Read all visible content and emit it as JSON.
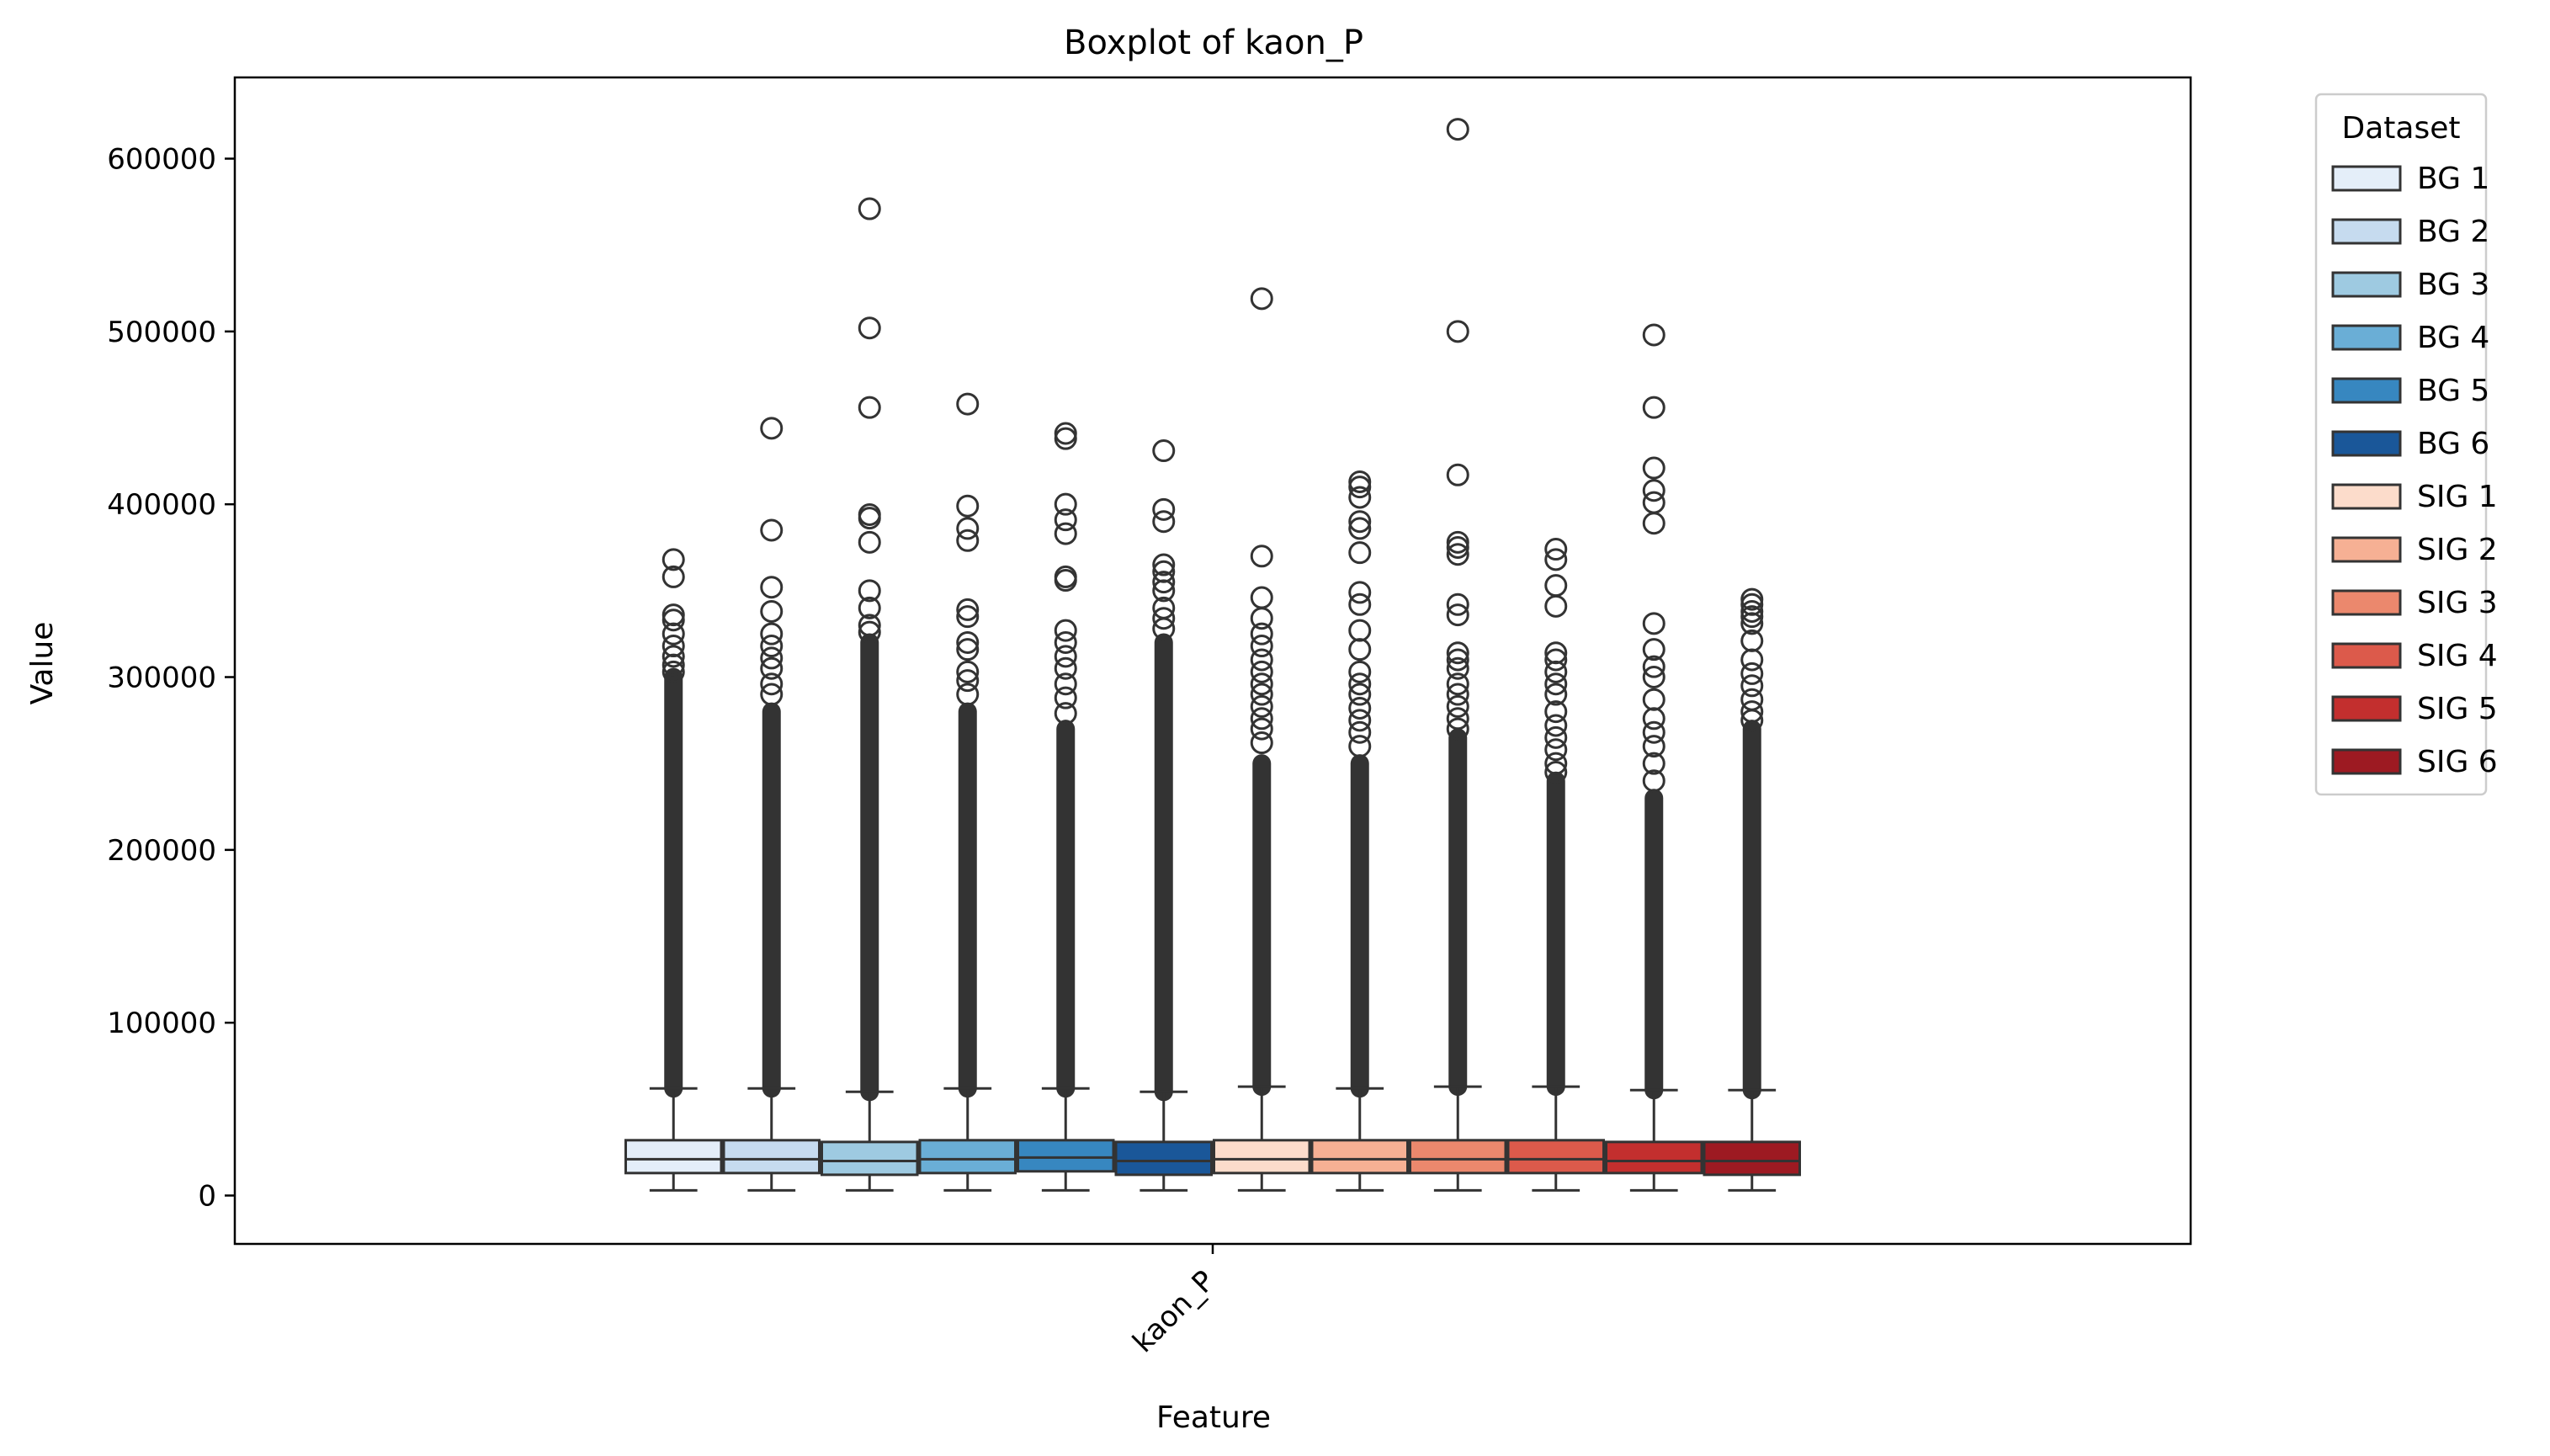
{
  "chart_data": {
    "type": "boxplot",
    "title": "Boxplot of kaon_P",
    "xlabel": "Feature",
    "ylabel": "Value",
    "categories": [
      "kaon_P"
    ],
    "ylim": [
      -28000,
      647000
    ],
    "yticks": [
      0,
      100000,
      200000,
      300000,
      400000,
      500000,
      600000
    ],
    "ytick_labels": [
      "0",
      "100000",
      "200000",
      "300000",
      "400000",
      "500000",
      "600000"
    ],
    "legend": {
      "title": "Dataset",
      "placement": "outside-right"
    },
    "series": [
      {
        "name": "BG 1",
        "color": "#e4eef9",
        "whisker_low": 3000,
        "q1": 13000,
        "median": 21000,
        "q3": 32000,
        "whisker_high": 62000,
        "outlier_dense_max": 300000,
        "outliers": [
          368000,
          358000,
          336000,
          333000,
          325000,
          318000,
          312000,
          307000,
          303000
        ]
      },
      {
        "name": "BG 2",
        "color": "#c6dbef",
        "whisker_low": 3000,
        "q1": 13000,
        "median": 21000,
        "q3": 32000,
        "whisker_high": 62000,
        "outlier_dense_max": 280000,
        "outliers": [
          444000,
          385000,
          352000,
          338000,
          325000,
          318000,
          311000,
          305000,
          296000,
          290000
        ]
      },
      {
        "name": "BG 3",
        "color": "#9ecae1",
        "whisker_low": 3000,
        "q1": 12000,
        "median": 20000,
        "q3": 31000,
        "whisker_high": 60000,
        "outlier_dense_max": 320000,
        "outliers": [
          571000,
          502000,
          456000,
          394000,
          392000,
          378000,
          350000,
          340000,
          330000,
          326000
        ]
      },
      {
        "name": "BG 4",
        "color": "#6aaed6",
        "whisker_low": 3000,
        "q1": 13000,
        "median": 21000,
        "q3": 32000,
        "whisker_high": 62000,
        "outlier_dense_max": 280000,
        "outliers": [
          458000,
          399000,
          386000,
          379000,
          339000,
          335000,
          320000,
          316000,
          303000,
          298000,
          290000
        ]
      },
      {
        "name": "BG 5",
        "color": "#3787c0",
        "whisker_low": 3000,
        "q1": 14000,
        "median": 22000,
        "q3": 32000,
        "whisker_high": 62000,
        "outlier_dense_max": 270000,
        "outliers": [
          441000,
          438000,
          400000,
          391000,
          383000,
          358000,
          356000,
          327000,
          320000,
          312000,
          305000,
          296000,
          288000,
          279000
        ]
      },
      {
        "name": "BG 6",
        "color": "#1a5799",
        "whisker_low": 3000,
        "q1": 12000,
        "median": 20000,
        "q3": 31000,
        "whisker_high": 60000,
        "outlier_dense_max": 320000,
        "outliers": [
          431000,
          397000,
          390000,
          365000,
          361000,
          355000,
          350000,
          340000,
          334000,
          328000
        ]
      },
      {
        "name": "SIG 1",
        "color": "#fcdccb",
        "whisker_low": 3000,
        "q1": 13000,
        "median": 21000,
        "q3": 32000,
        "whisker_high": 63000,
        "outlier_dense_max": 250000,
        "outliers": [
          519000,
          370000,
          346000,
          334000,
          325000,
          318000,
          310000,
          303000,
          296000,
          290000,
          283000,
          276000,
          270000,
          262000
        ]
      },
      {
        "name": "SIG 2",
        "color": "#f6b094",
        "whisker_low": 3000,
        "q1": 13000,
        "median": 21000,
        "q3": 32000,
        "whisker_high": 62000,
        "outlier_dense_max": 250000,
        "outliers": [
          413000,
          410000,
          404000,
          390000,
          386000,
          372000,
          349000,
          342000,
          327000,
          316000,
          303000,
          296000,
          290000,
          282000,
          275000,
          268000,
          260000
        ]
      },
      {
        "name": "SIG 3",
        "color": "#eb886d",
        "whisker_low": 3000,
        "q1": 13000,
        "median": 21000,
        "q3": 32000,
        "whisker_high": 63000,
        "outlier_dense_max": 265000,
        "outliers": [
          617000,
          500000,
          417000,
          378000,
          375000,
          371000,
          342000,
          336000,
          314000,
          310000,
          305000,
          296000,
          290000,
          283000,
          276000,
          270000
        ]
      },
      {
        "name": "SIG 4",
        "color": "#dc5a4b",
        "whisker_low": 3000,
        "q1": 13000,
        "median": 21000,
        "q3": 32000,
        "whisker_high": 63000,
        "outlier_dense_max": 240000,
        "outliers": [
          374000,
          368000,
          353000,
          341000,
          314000,
          310000,
          303000,
          296000,
          290000,
          280000,
          272000,
          265000,
          258000,
          250000,
          245000
        ]
      },
      {
        "name": "SIG 5",
        "color": "#c32f2e",
        "whisker_low": 3000,
        "q1": 13000,
        "median": 20000,
        "q3": 31000,
        "whisker_high": 61000,
        "outlier_dense_max": 230000,
        "outliers": [
          498000,
          456000,
          421000,
          408000,
          401000,
          389000,
          331000,
          316000,
          306000,
          300000,
          287000,
          276000,
          268000,
          260000,
          250000,
          240000
        ]
      },
      {
        "name": "SIG 6",
        "color": "#9d1a22",
        "whisker_low": 3000,
        "q1": 12000,
        "median": 20000,
        "q3": 31000,
        "whisker_high": 61000,
        "outlier_dense_max": 270000,
        "outliers": [
          345000,
          342000,
          338000,
          335000,
          331000,
          321000,
          310000,
          302000,
          295000,
          287000,
          280000,
          275000
        ]
      }
    ]
  }
}
